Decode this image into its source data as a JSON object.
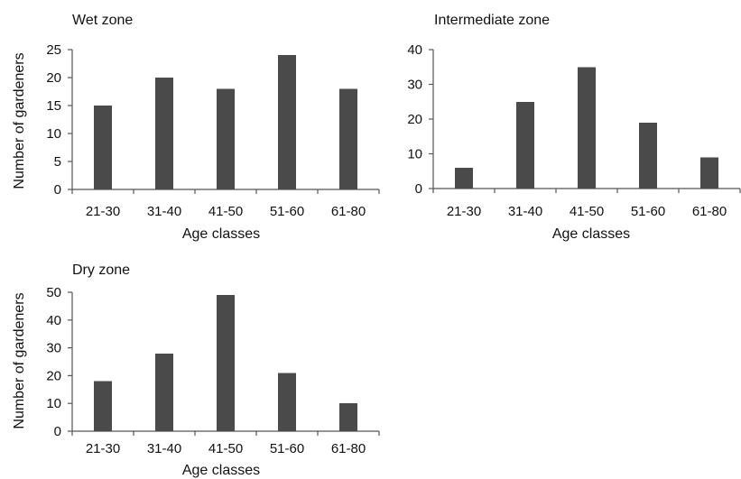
{
  "colors": {
    "bar": "#4a4a4a",
    "axis": "#555555"
  },
  "chart_data": [
    {
      "type": "bar",
      "title": "Wet zone",
      "xlabel": "Age classes",
      "ylabel": "Number of gardeners",
      "categories": [
        "21-30",
        "31-40",
        "41-50",
        "51-60",
        "61-80"
      ],
      "values": [
        15,
        20,
        18,
        24,
        18
      ],
      "ylim": [
        0,
        25
      ],
      "yticks": [
        0,
        5,
        10,
        15,
        20,
        25
      ],
      "grid": false
    },
    {
      "type": "bar",
      "title": "Intermediate zone",
      "xlabel": "Age classes",
      "ylabel": "",
      "categories": [
        "21-30",
        "31-40",
        "41-50",
        "51-60",
        "61-80"
      ],
      "values": [
        6,
        25,
        35,
        19,
        9
      ],
      "ylim": [
        0,
        40
      ],
      "yticks": [
        0,
        10,
        20,
        30,
        40
      ],
      "grid": false
    },
    {
      "type": "bar",
      "title": "Dry zone",
      "xlabel": "Age classes",
      "ylabel": "Number of gardeners",
      "categories": [
        "21-30",
        "31-40",
        "41-50",
        "51-60",
        "61-80"
      ],
      "values": [
        18,
        28,
        49,
        21,
        10
      ],
      "ylim": [
        0,
        50
      ],
      "yticks": [
        0,
        10,
        20,
        30,
        40,
        50
      ],
      "grid": false
    }
  ]
}
